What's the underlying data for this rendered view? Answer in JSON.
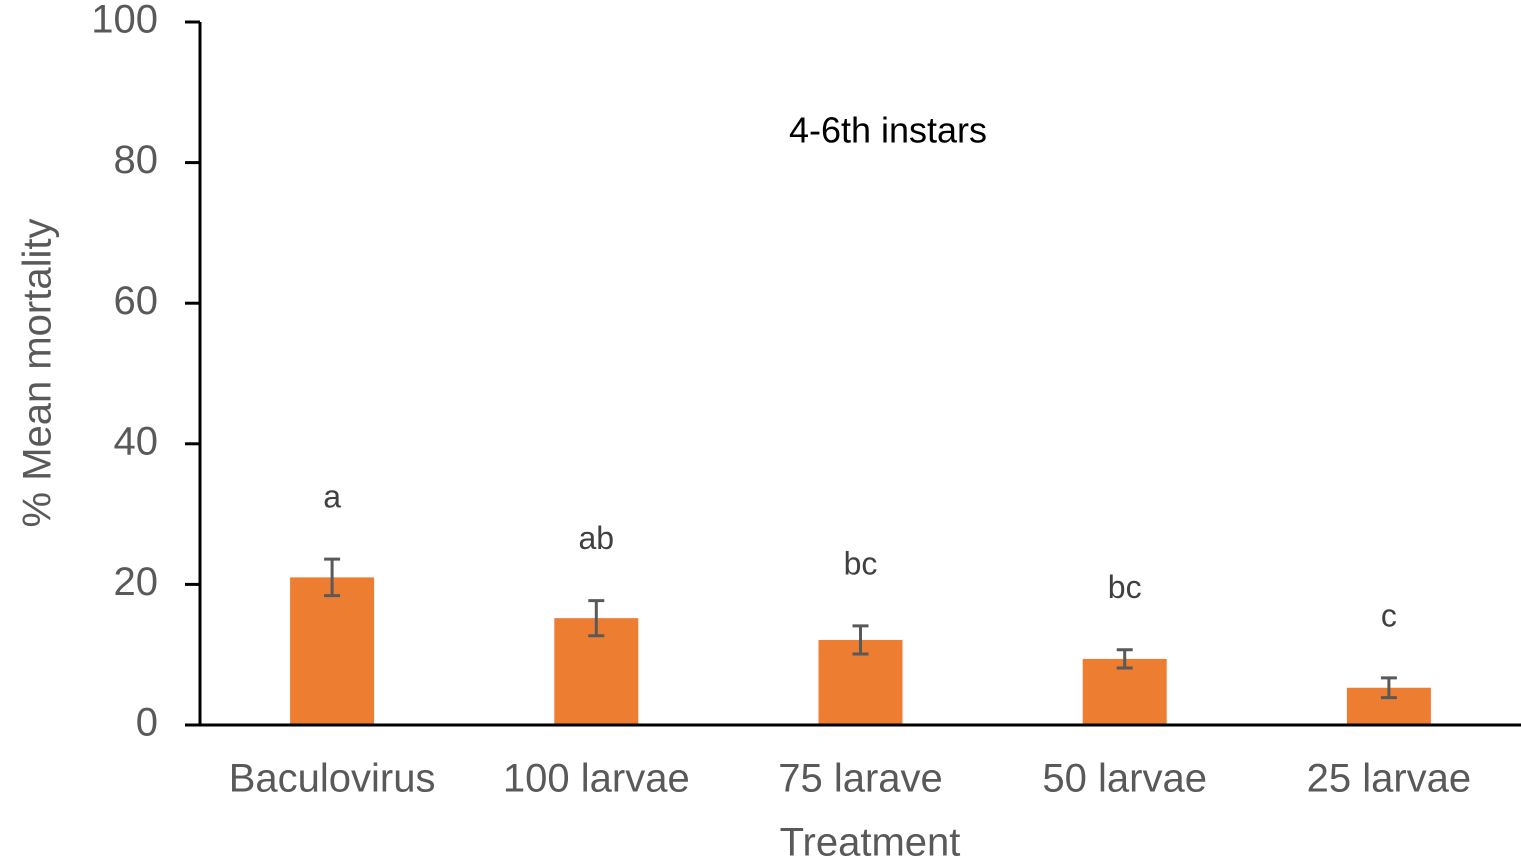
{
  "chart_data": {
    "type": "bar",
    "title": "4-6th instars",
    "xlabel": "Treatment",
    "ylabel": "% Mean mortality",
    "categories": [
      "Baculovirus",
      "100 larvae",
      "75 larave",
      "50 larvae",
      "25 larvae"
    ],
    "values": [
      21,
      15.2,
      12.1,
      9.4,
      5.3
    ],
    "errors": [
      2.6,
      2.5,
      2.0,
      1.3,
      1.4
    ],
    "annotations": [
      "a",
      "ab",
      "bc",
      "bc",
      "c"
    ],
    "color": "#ed7d31",
    "error_color": "#595959",
    "ylim": [
      0,
      100
    ],
    "yticks": [
      0,
      20,
      40,
      60,
      80,
      100
    ],
    "grid": false
  }
}
